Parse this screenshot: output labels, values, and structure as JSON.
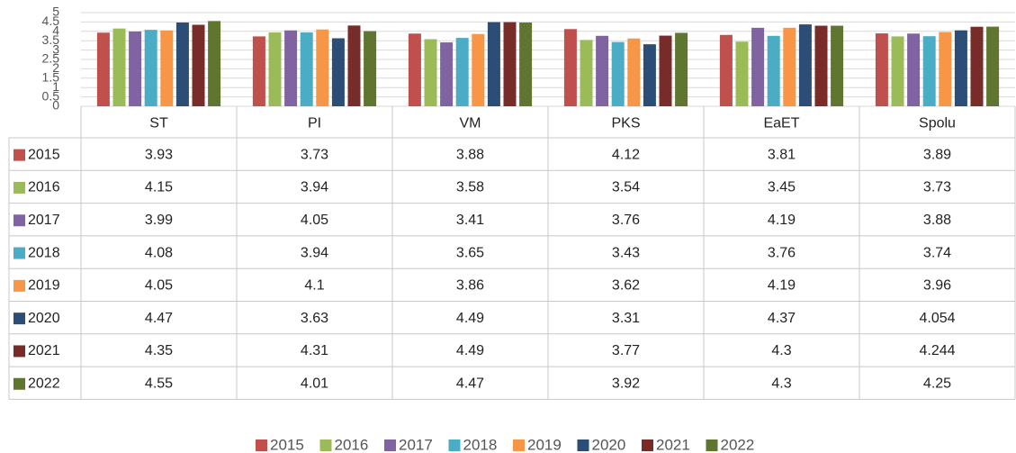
{
  "chart_data": {
    "type": "bar",
    "categories": [
      "ST",
      "PI",
      "VM",
      "PKS",
      "EaET",
      "Spolu"
    ],
    "series": [
      {
        "name": "2015",
        "color": "#c0504d",
        "values": [
          3.93,
          3.73,
          3.88,
          4.12,
          3.81,
          3.89
        ]
      },
      {
        "name": "2016",
        "color": "#9bbb59",
        "values": [
          4.15,
          3.94,
          3.58,
          3.54,
          3.45,
          3.73
        ]
      },
      {
        "name": "2017",
        "color": "#8064a2",
        "values": [
          3.99,
          4.05,
          3.41,
          3.76,
          4.19,
          3.88
        ]
      },
      {
        "name": "2018",
        "color": "#4bacc6",
        "values": [
          4.08,
          3.94,
          3.65,
          3.43,
          3.76,
          3.74
        ]
      },
      {
        "name": "2019",
        "color": "#f79646",
        "values": [
          4.05,
          4.1,
          3.86,
          3.62,
          4.19,
          3.96
        ]
      },
      {
        "name": "2020",
        "color": "#2c4d75",
        "values": [
          4.47,
          3.63,
          4.49,
          3.31,
          4.37,
          4.054
        ]
      },
      {
        "name": "2021",
        "color": "#772c2a",
        "values": [
          4.35,
          4.31,
          4.49,
          3.77,
          4.3,
          4.244
        ]
      },
      {
        "name": "2022",
        "color": "#5f7530",
        "values": [
          4.55,
          4.01,
          4.47,
          3.92,
          4.3,
          4.25
        ]
      }
    ],
    "ylim": [
      0,
      5
    ],
    "yticks": [
      0,
      0.5,
      1,
      1.5,
      2,
      2.5,
      3,
      3.5,
      4,
      4.5,
      5
    ],
    "grid": true
  }
}
